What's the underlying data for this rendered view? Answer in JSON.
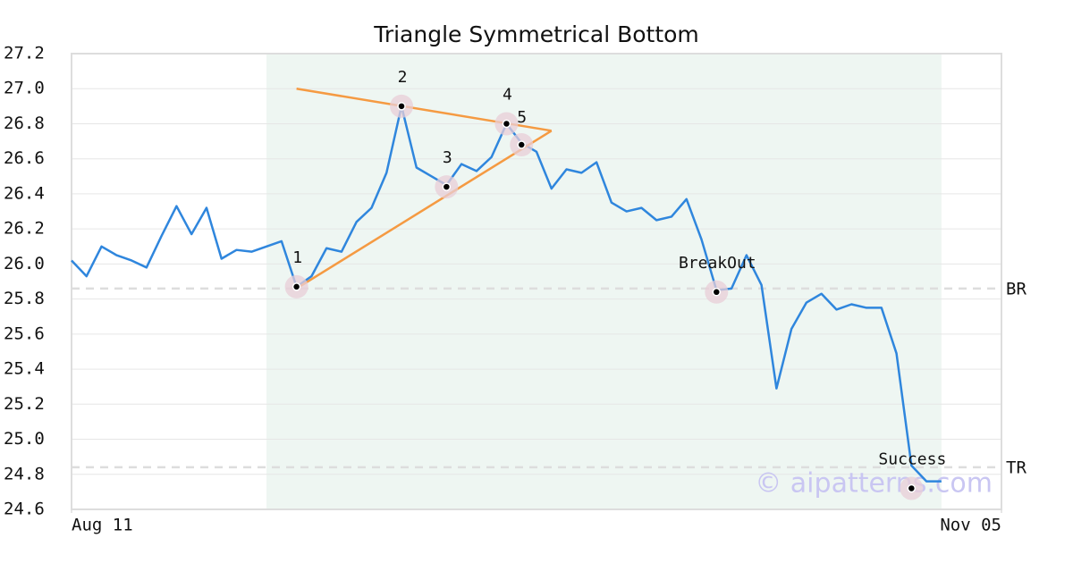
{
  "chart_data": {
    "type": "line",
    "title": "Triangle Symmetrical Bottom",
    "xlim": [
      0,
      62
    ],
    "xticks": [
      {
        "value": 0,
        "label": "Aug 11"
      },
      {
        "value": 62,
        "label": "Nov 05"
      }
    ],
    "ylim": [
      24.6,
      27.2
    ],
    "yticks": [
      24.6,
      24.8,
      {
        "value": 25.0,
        "label": "25.0"
      },
      25.2,
      25.4,
      25.6,
      25.8,
      {
        "value": 26.0,
        "label": "26.0"
      },
      26.2,
      26.4,
      26.6,
      26.8,
      {
        "value": 27.0,
        "label": "27.0"
      },
      27.2
    ],
    "grid": true,
    "shaded_region": [
      13,
      58
    ],
    "series": [
      {
        "color": "#2f86dd",
        "x": [
          0,
          1,
          2,
          3,
          4,
          5,
          6,
          7,
          8,
          9,
          10,
          11,
          12,
          13,
          14,
          15,
          16,
          17,
          18,
          19,
          20,
          21,
          22,
          23,
          24,
          25,
          26,
          27,
          28,
          29,
          30,
          31,
          32,
          33,
          34,
          35,
          36,
          37,
          38,
          39,
          40,
          41,
          42,
          43,
          44,
          45,
          46,
          47,
          48,
          49,
          50,
          51,
          52,
          53,
          54,
          55,
          56,
          57,
          58
        ],
        "values": [
          26.02,
          25.93,
          26.1,
          26.05,
          26.02,
          25.98,
          26.16,
          26.33,
          26.17,
          26.32,
          26.03,
          26.08,
          26.07,
          26.1,
          26.13,
          25.87,
          25.93,
          26.09,
          26.07,
          26.24,
          26.32,
          26.52,
          26.9,
          26.55,
          26.5,
          26.45,
          26.57,
          26.53,
          26.61,
          26.8,
          26.69,
          26.64,
          26.43,
          26.54,
          26.52,
          26.58,
          26.35,
          26.3,
          26.32,
          26.25,
          26.27,
          26.37,
          26.14,
          25.85,
          25.86,
          26.05,
          25.88,
          25.29,
          25.63,
          25.78,
          25.83,
          25.74,
          25.77,
          25.75,
          25.75,
          25.49,
          24.85,
          24.76,
          24.76
        ]
      }
    ],
    "trendlines": [
      {
        "color": "#f59a42",
        "x": [
          15,
          32
        ],
        "values": [
          27.0,
          26.76
        ]
      },
      {
        "color": "#f59a42",
        "x": [
          15,
          32
        ],
        "values": [
          25.86,
          26.76
        ]
      }
    ],
    "points": [
      {
        "label": "1",
        "x": 15,
        "value": 25.87
      },
      {
        "label": "2",
        "x": 22,
        "value": 26.9
      },
      {
        "label": "3",
        "x": 25,
        "value": 26.44
      },
      {
        "label": "4",
        "x": 29,
        "value": 26.8
      },
      {
        "label": "5",
        "x": 30,
        "value": 26.68
      },
      {
        "label": "BreakOut",
        "x": 43,
        "value": 25.84
      },
      {
        "label": "Success",
        "x": 56,
        "value": 24.72
      }
    ],
    "levels": [
      {
        "label": "BR",
        "value": 25.86
      },
      {
        "label": "TR",
        "value": 24.84
      }
    ],
    "watermark": "© aipatterns.com"
  }
}
